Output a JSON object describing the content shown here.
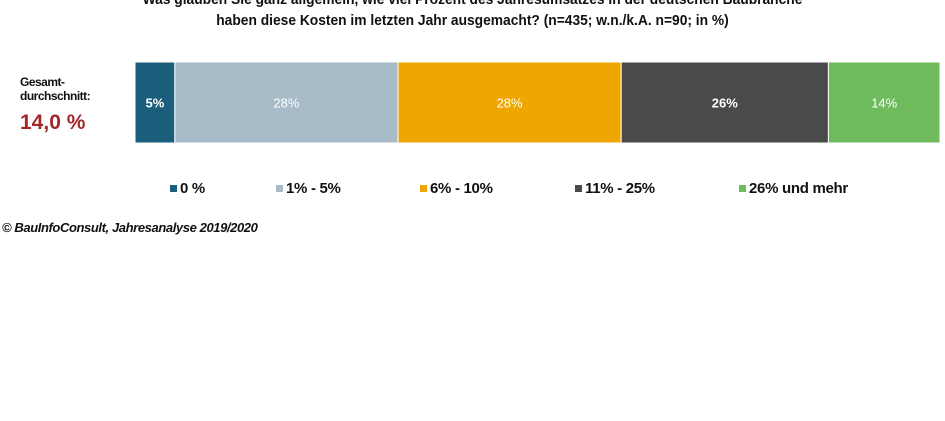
{
  "chart_data": {
    "type": "bar",
    "orientation": "horizontal-stacked",
    "title_line1": "Was glauben Sie ganz allgemein, wie viel Prozent des Jahresumsatzes in der deutschen Baubranche",
    "title_line2": "haben diese Kosten im letzten Jahr ausgemacht? (n=435; w.n./k.A. n=90; in %)",
    "row_label_line1": "Gesamt-",
    "row_label_line2": "durchschnitt:",
    "average_value": "14,0 %",
    "series": [
      {
        "name": "0 %",
        "value": 5,
        "label": "5%",
        "color": "#1b5e7b"
      },
      {
        "name": "1% - 5%",
        "value": 28,
        "label": "28%",
        "color": "#a7bbc9"
      },
      {
        "name": "6% - 10%",
        "value": 28,
        "label": "28%",
        "color": "#efa600"
      },
      {
        "name": "11% - 25%",
        "value": 26,
        "label": "26%",
        "color": "#4a4a4a"
      },
      {
        "name": "26% und mehr",
        "value": 14,
        "label": "14%",
        "color": "#6dbb5c"
      }
    ],
    "legend_position": "bottom",
    "source": "© BauInfoConsult, Jahresanalyse 2019/2020"
  }
}
